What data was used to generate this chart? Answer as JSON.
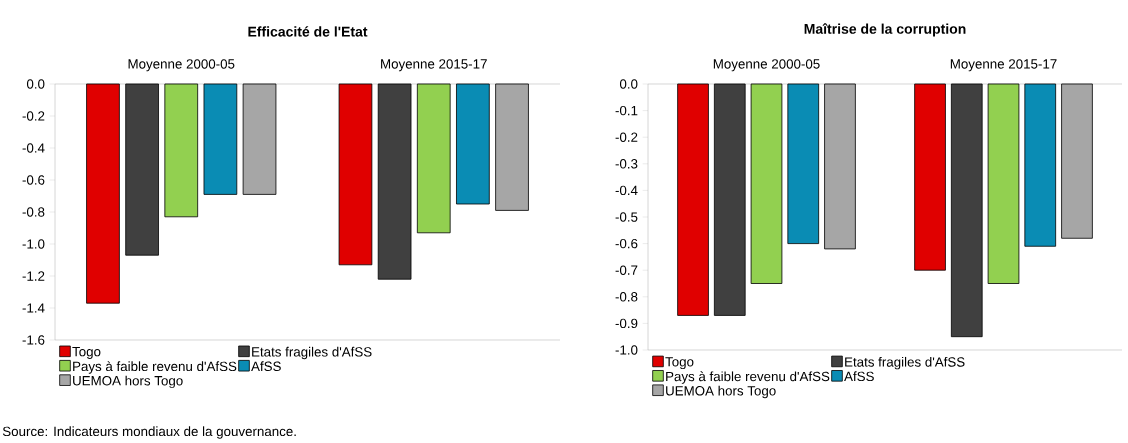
{
  "chart_data": [
    {
      "type": "bar",
      "title": "Efficacité de l'Etat",
      "categories": [
        "Moyenne 2000-05",
        "Moyenne 2015-17"
      ],
      "series": [
        {
          "name": "Togo",
          "color": "#e00000",
          "values": [
            -1.37,
            -1.13
          ]
        },
        {
          "name": "Etats fragiles d'AfSS",
          "color": "#404040",
          "values": [
            -1.07,
            -1.22
          ]
        },
        {
          "name": "Pays à faible revenu d'AfSS",
          "color": "#92d050",
          "values": [
            -0.83,
            -0.93
          ]
        },
        {
          "name": "AfSS",
          "color": "#0a8cb4",
          "values": [
            -0.69,
            -0.75
          ]
        },
        {
          "name": "UEMOA hors Togo",
          "color": "#a6a6a6",
          "values": [
            -0.69,
            -0.79
          ]
        }
      ],
      "ylim": [
        -1.6,
        0
      ],
      "yticks": [
        {
          "value": 0,
          "label": "0.0"
        },
        {
          "value": -0.2,
          "label": "-0.2"
        },
        {
          "value": -0.4,
          "label": "-0.4"
        },
        {
          "value": -0.6,
          "label": "-0.6"
        },
        {
          "value": -0.8,
          "label": "-0.8"
        },
        {
          "value": -1.0,
          "label": "-1.0"
        },
        {
          "value": -1.2,
          "label": "-1.2"
        },
        {
          "value": -1.4,
          "label": "-1.4"
        },
        {
          "value": -1.6,
          "label": "-1.6"
        }
      ],
      "grid": false,
      "legend": "bottom",
      "annotations": [
        "Source: Indicateurs mondiaux de la gouvernance."
      ]
    },
    {
      "type": "bar",
      "title": "Maîtrise de la corruption",
      "categories": [
        "Moyenne 2000-05",
        "Moyenne 2015-17"
      ],
      "series": [
        {
          "name": "Togo",
          "color": "#e00000",
          "values": [
            -0.87,
            -0.7
          ]
        },
        {
          "name": "Etats fragiles d'AfSS",
          "color": "#404040",
          "values": [
            -0.87,
            -0.95
          ]
        },
        {
          "name": "Pays à faible revenu d'AfSS",
          "color": "#92d050",
          "values": [
            -0.75,
            -0.75
          ]
        },
        {
          "name": "AfSS",
          "color": "#0a8cb4",
          "values": [
            -0.6,
            -0.61
          ]
        },
        {
          "name": "UEMOA hors Togo",
          "color": "#a6a6a6",
          "values": [
            -0.62,
            -0.58
          ]
        }
      ],
      "ylim": [
        -1.0,
        0
      ],
      "yticks": [
        {
          "value": 0,
          "label": "0.0"
        },
        {
          "value": -0.1,
          "label": "-0.1"
        },
        {
          "value": -0.2,
          "label": "-0.2"
        },
        {
          "value": -0.3,
          "label": "-0.3"
        },
        {
          "value": -0.4,
          "label": "-0.4"
        },
        {
          "value": -0.5,
          "label": "-0.5"
        },
        {
          "value": -0.6,
          "label": "-0.6"
        },
        {
          "value": -0.7,
          "label": "-0.7"
        },
        {
          "value": -0.8,
          "label": "-0.8"
        },
        {
          "value": -0.9,
          "label": "-0.9"
        },
        {
          "value": -1.0,
          "label": "-1.0"
        }
      ],
      "grid": false,
      "legend": "bottom"
    }
  ]
}
